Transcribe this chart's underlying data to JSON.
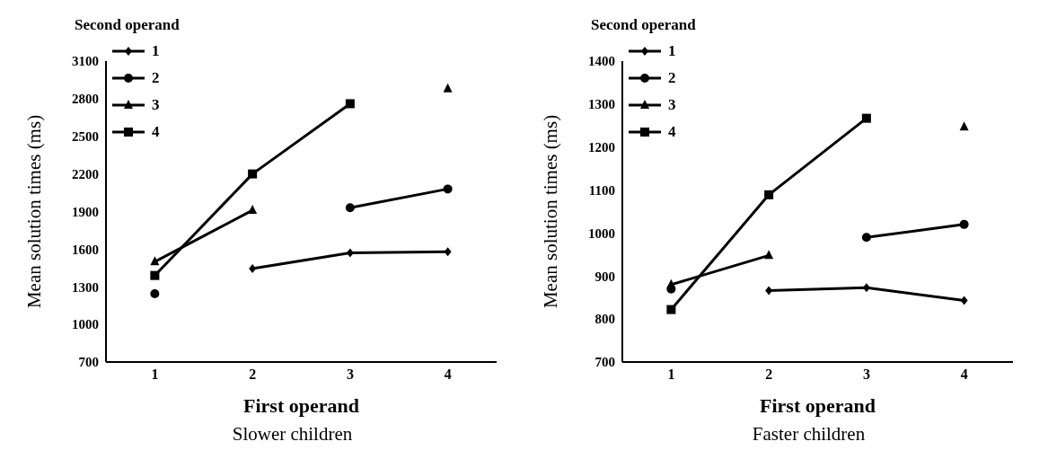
{
  "chart_data": [
    {
      "type": "line",
      "title": "Slower children",
      "xlabel": "First operand",
      "ylabel": "Mean solution times (ms)",
      "legend_title": "Second operand",
      "legend": "top left",
      "categories": [
        "1",
        "2",
        "3",
        "4"
      ],
      "ylim": [
        700,
        3100
      ],
      "yticks": [
        700,
        1000,
        1300,
        1600,
        1900,
        2200,
        2500,
        2800,
        3100
      ],
      "grid": false,
      "series": [
        {
          "name": "1",
          "color": "#000000",
          "marker": "diamond",
          "values": [
            null,
            1445,
            1570,
            1580
          ]
        },
        {
          "name": "2",
          "color": "#000000",
          "marker": "circle",
          "values": [
            1245,
            null,
            1930,
            2080
          ]
        },
        {
          "name": "3",
          "color": "#000000",
          "marker": "triangle",
          "values": [
            1500,
            1910,
            null,
            2880
          ]
        },
        {
          "name": "4",
          "color": "#000000",
          "marker": "square",
          "values": [
            1390,
            2200,
            2760,
            null
          ]
        }
      ]
    },
    {
      "type": "line",
      "title": "Faster children",
      "xlabel": "First operand",
      "ylabel": "Mean solution times (ms)",
      "legend_title": "Second operand",
      "legend": "top left",
      "categories": [
        "1",
        "2",
        "3",
        "4"
      ],
      "ylim": [
        700,
        1400
      ],
      "yticks": [
        700,
        800,
        900,
        1000,
        1100,
        1200,
        1300,
        1400
      ],
      "grid": false,
      "series": [
        {
          "name": "1",
          "color": "#000000",
          "marker": "diamond",
          "values": [
            null,
            866,
            873,
            843
          ]
        },
        {
          "name": "2",
          "color": "#000000",
          "marker": "circle",
          "values": [
            870,
            null,
            990,
            1020
          ]
        },
        {
          "name": "3",
          "color": "#000000",
          "marker": "triangle",
          "values": [
            880,
            948,
            null,
            1247
          ]
        },
        {
          "name": "4",
          "color": "#000000",
          "marker": "square",
          "values": [
            822,
            1089,
            1267,
            null
          ]
        }
      ]
    }
  ]
}
